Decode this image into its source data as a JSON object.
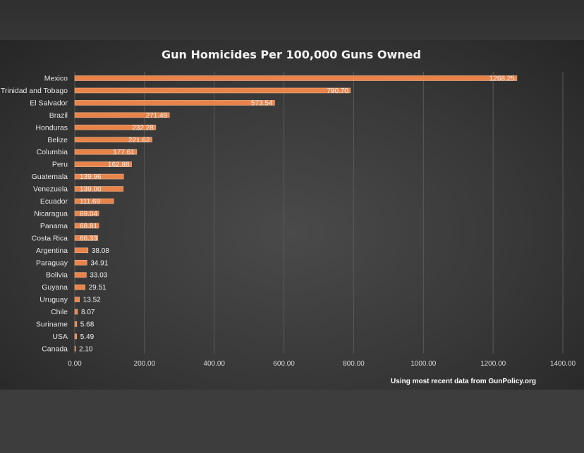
{
  "chart_data": {
    "type": "bar",
    "orientation": "horizontal",
    "title": "Gun Homicides Per 100,000 Guns Owned",
    "xlabel": "",
    "ylabel": "",
    "xlim": [
      0,
      1400
    ],
    "x_ticks": [
      "0.00",
      "200.00",
      "400.00",
      "600.00",
      "800.00",
      "1000.00",
      "1200.00",
      "1400.00"
    ],
    "grid": true,
    "legend": "none",
    "bar_color": "#e8844a",
    "categories": [
      "Mexico",
      "Trinidad and Tobago",
      "El Salvador",
      "Brazil",
      "Honduras",
      "Belize",
      "Columbia",
      "Peru",
      "Guatemala",
      "Venezuela",
      "Ecuador",
      "Nicaragua",
      "Panama",
      "Costa Rica",
      "Argentina",
      "Paraguay",
      "Bolivia",
      "Guyana",
      "Uruguay",
      "Chile",
      "Suriname",
      "USA",
      "Canada"
    ],
    "values": [
      1268.25,
      790.7,
      573.54,
      271.49,
      232.28,
      221.62,
      177.61,
      162.88,
      139.96,
      139.0,
      111.69,
      69.04,
      68.81,
      66.33,
      38.08,
      34.91,
      33.03,
      29.51,
      13.52,
      8.07,
      5.68,
      5.49,
      2.1
    ],
    "value_labels": [
      "1268.25",
      "790.70",
      "573.54",
      "271.49",
      "232.28",
      "221.62",
      "177.61",
      "162.88",
      "139.96",
      "139.00",
      "111.69",
      "69.04",
      "68.81",
      "66.33",
      "38.08",
      "34.91",
      "33.03",
      "29.51",
      "13.52",
      "8.07",
      "5.68",
      "5.49",
      "2.10"
    ],
    "source_note": "Using most recent data from GunPolicy.org"
  }
}
